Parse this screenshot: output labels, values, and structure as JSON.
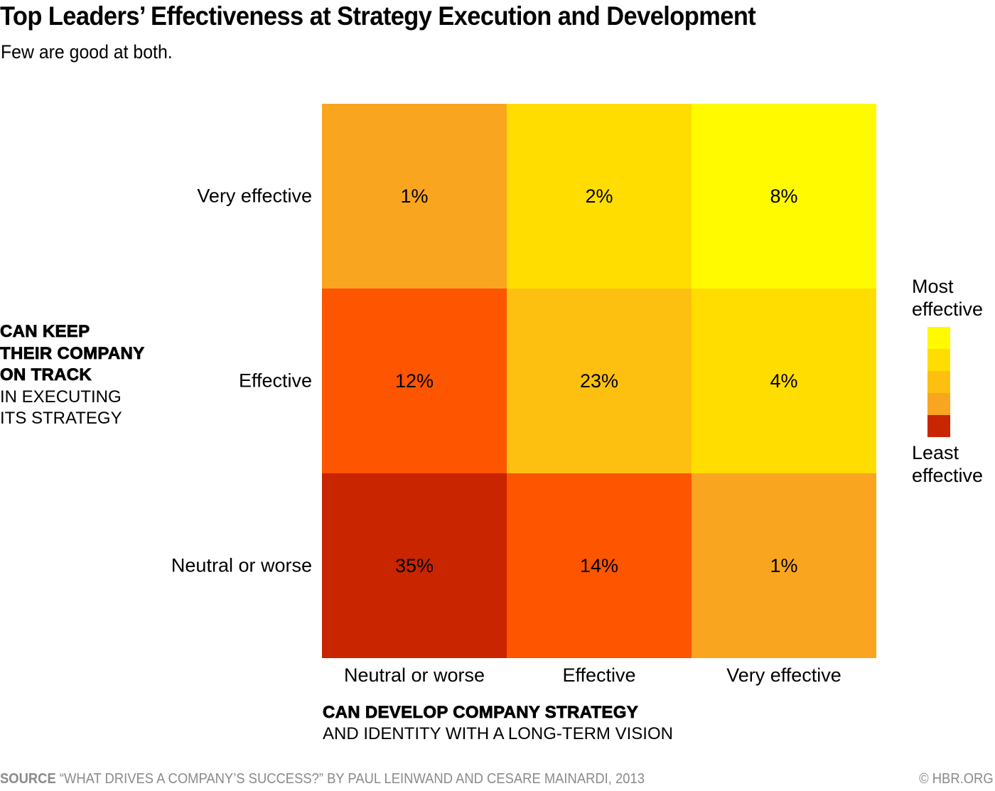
{
  "header": {
    "title": "Top Leaders’ Effectiveness at Strategy Execution and Development",
    "subtitle": "Few are good at both."
  },
  "chart_data": {
    "type": "heatmap",
    "title": "Top Leaders’ Effectiveness at Strategy Execution and Development",
    "subtitle": "Few are good at both.",
    "xlabel_bold": "CAN DEVELOP COMPANY STRATEGY",
    "xlabel_rest": "AND IDENTITY WITH A LONG-TERM VISION",
    "ylabel_bold": [
      "CAN KEEP",
      "THEIR COMPANY",
      "ON TRACK"
    ],
    "ylabel_rest": [
      "IN EXECUTING",
      "ITS STRATEGY"
    ],
    "x_categories": [
      "Neutral or worse",
      "Effective",
      "Very effective"
    ],
    "y_categories": [
      "Very effective",
      "Effective",
      "Neutral or worse"
    ],
    "unit": "%",
    "values": [
      [
        1,
        2,
        8
      ],
      [
        12,
        23,
        4
      ],
      [
        35,
        14,
        1
      ]
    ],
    "labels": [
      [
        "1%",
        "2%",
        "8%"
      ],
      [
        "12%",
        "23%",
        "4%"
      ],
      [
        "35%",
        "14%",
        "1%"
      ]
    ],
    "color_levels": [
      [
        2,
        4,
        5
      ],
      [
        1,
        3,
        4
      ],
      [
        0,
        1,
        2
      ]
    ],
    "legend": {
      "top_label": [
        "Most",
        "effective"
      ],
      "bottom_label": [
        "Least",
        "effective"
      ],
      "placement": "right",
      "colors_most_to_least": [
        "#FFFA00",
        "#FFDD00",
        "#FDC010",
        "#F9A520",
        "#C82500"
      ]
    },
    "palette_least_to_most": [
      "#C82500",
      "#FD5500",
      "#F9A520",
      "#FDC010",
      "#FFDD00",
      "#FFFA00"
    ]
  },
  "footer": {
    "source_label": "SOURCE",
    "source_text": "“WHAT DRIVES A COMPANY’S SUCCESS?” BY PAUL LEINWAND AND CESARE MAINARDI, 2013",
    "credit": "© HBR.ORG"
  }
}
